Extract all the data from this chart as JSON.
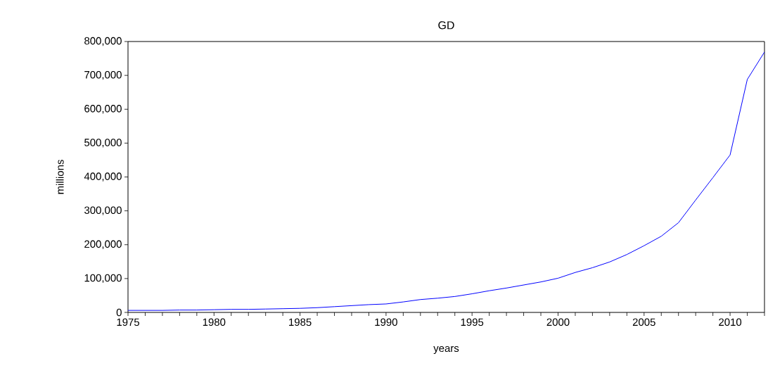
{
  "chart_data": {
    "type": "line",
    "title": "GD",
    "xlabel": "years",
    "ylabel": "millions",
    "x": [
      1975,
      1976,
      1977,
      1978,
      1979,
      1980,
      1981,
      1982,
      1983,
      1984,
      1985,
      1986,
      1987,
      1988,
      1989,
      1990,
      1991,
      1992,
      1993,
      1994,
      1995,
      1996,
      1997,
      1998,
      1999,
      2000,
      2001,
      2002,
      2003,
      2004,
      2005,
      2006,
      2007,
      2008,
      2009,
      2010,
      2011,
      2012
    ],
    "series": [
      {
        "color": "#0000ff",
        "values": [
          6000,
          6000,
          6000,
          7000,
          7000,
          8000,
          9000,
          9000,
          10000,
          11000,
          12000,
          14000,
          17000,
          20000,
          23000,
          25000,
          31000,
          38000,
          42000,
          47000,
          55000,
          64000,
          72000,
          81000,
          90000,
          101000,
          118000,
          132000,
          149000,
          171000,
          197000,
          225000,
          265000,
          332000,
          398000,
          465000,
          688000,
          769000
        ]
      }
    ],
    "xlim": [
      1975,
      2012
    ],
    "ylim": [
      0,
      800000
    ],
    "xticks": [
      1975,
      {
        "value": 1976,
        "label": null
      },
      {
        "value": 1977,
        "label": null
      },
      {
        "value": 1978,
        "label": null
      },
      {
        "value": 1979,
        "label": null
      },
      1980,
      {
        "value": 1981,
        "label": null
      },
      {
        "value": 1982,
        "label": null
      },
      {
        "value": 1983,
        "label": null
      },
      {
        "value": 1984,
        "label": null
      },
      1985,
      {
        "value": 1986,
        "label": null
      },
      {
        "value": 1987,
        "label": null
      },
      {
        "value": 1988,
        "label": null
      },
      {
        "value": 1989,
        "label": null
      },
      1990,
      {
        "value": 1991,
        "label": null
      },
      {
        "value": 1992,
        "label": null
      },
      {
        "value": 1993,
        "label": null
      },
      {
        "value": 1994,
        "label": null
      },
      1995,
      {
        "value": 1996,
        "label": null
      },
      {
        "value": 1997,
        "label": null
      },
      {
        "value": 1998,
        "label": null
      },
      {
        "value": 1999,
        "label": null
      },
      2000,
      {
        "value": 2001,
        "label": null
      },
      {
        "value": 2002,
        "label": null
      },
      {
        "value": 2003,
        "label": null
      },
      {
        "value": 2004,
        "label": null
      },
      2005,
      {
        "value": 2006,
        "label": null
      },
      {
        "value": 2007,
        "label": null
      },
      {
        "value": 2008,
        "label": null
      },
      {
        "value": 2009,
        "label": null
      },
      2010,
      {
        "value": 2011,
        "label": null
      },
      {
        "value": 2012,
        "label": null
      }
    ],
    "yticks": [
      0,
      {
        "value": 100000,
        "label": "100,000"
      },
      {
        "value": 200000,
        "label": "200,000"
      },
      {
        "value": 300000,
        "label": "300,000"
      },
      {
        "value": 400000,
        "label": "400,000"
      },
      {
        "value": 500000,
        "label": "500,000"
      },
      {
        "value": 600000,
        "label": "600,000"
      },
      {
        "value": 700000,
        "label": "700,000"
      },
      {
        "value": 800000,
        "label": "800,000"
      }
    ],
    "grid": false,
    "marker": "none",
    "line_style": "solid"
  }
}
